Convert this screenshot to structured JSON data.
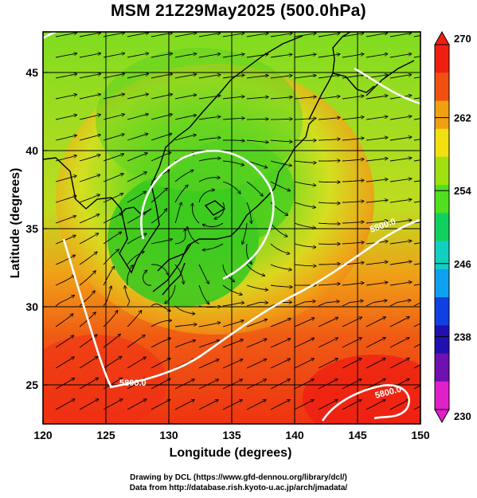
{
  "title": "MSM 21Z29May2025 (500.0hPa)",
  "credits": {
    "line1": "Drawing by DCL (https://www.gfd-dennou.org/library/dcl/)",
    "line2": "Data from http://database.rish.kyoto-u.ac.jp/arch/jmadata/"
  },
  "map": {
    "xlabel": "Longitude (degrees)",
    "ylabel": "Latitude  (degrees)",
    "xrange": [
      120,
      150
    ],
    "yrange": [
      22.5,
      47.6
    ],
    "xticks": [
      "120",
      "125",
      "130",
      "135",
      "140",
      "145",
      "150"
    ],
    "yticks": [
      "25",
      "30",
      "35",
      "40",
      "45"
    ],
    "graticule_step_degrees": 5,
    "contour_labels": [
      "5800.0",
      "5800.0",
      "5800.0"
    ],
    "colorbar": {
      "ticks": [
        "230",
        "238",
        "246",
        "254",
        "262",
        "270"
      ],
      "min": 230,
      "max": 270,
      "colors": [
        "#e020c8",
        "#7010b0",
        "#2010b0",
        "#1040e0",
        "#10a0f0",
        "#10d0c0",
        "#10d060",
        "#50e020",
        "#a0e010",
        "#f0e010",
        "#f0a010",
        "#f05010",
        "#f02010"
      ]
    }
  }
}
